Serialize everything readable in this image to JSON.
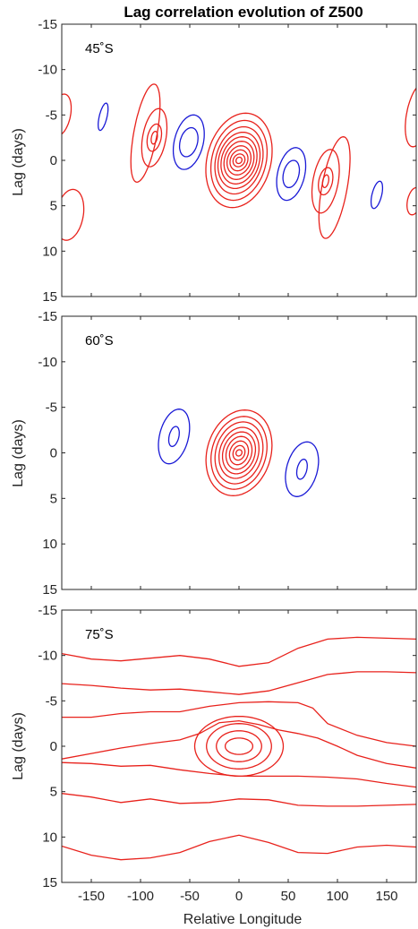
{
  "chart_data": {
    "type": "contour",
    "title": "Lag correlation evolution of Z500",
    "xlabel": "Relative Longitude",
    "ylabel": "Lag (days)",
    "xlim": [
      -180,
      180
    ],
    "ylim": [
      -15,
      15
    ],
    "y_reversed": true,
    "xticks": [
      -150,
      -100,
      -50,
      0,
      50,
      100,
      150
    ],
    "yticks": [
      -15,
      -10,
      -5,
      0,
      5,
      10,
      15
    ],
    "colors": {
      "positive": "#e8221c",
      "negative": "#1a1ad6"
    },
    "panels": [
      {
        "label": "45˚S",
        "contours": [
          {
            "sign": "pos",
            "cx": 0,
            "cy": 0,
            "rx": 3,
            "ry": 0.35,
            "tilt": -1.3
          },
          {
            "sign": "pos",
            "cx": 0,
            "cy": 0,
            "rx": 6,
            "ry": 0.7,
            "tilt": -1.3
          },
          {
            "sign": "pos",
            "cx": 0,
            "cy": 0,
            "rx": 9,
            "ry": 1.15,
            "tilt": -1.3
          },
          {
            "sign": "pos",
            "cx": 0,
            "cy": 0,
            "rx": 12,
            "ry": 1.6,
            "tilt": -1.3
          },
          {
            "sign": "pos",
            "cx": 0,
            "cy": 0,
            "rx": 15,
            "ry": 2.1,
            "tilt": -1.3
          },
          {
            "sign": "pos",
            "cx": 0,
            "cy": 0,
            "rx": 18,
            "ry": 2.6,
            "tilt": -1.3
          },
          {
            "sign": "pos",
            "cx": 0,
            "cy": 0,
            "rx": 21,
            "ry": 3.1,
            "tilt": -1.3
          },
          {
            "sign": "pos",
            "cx": 0,
            "cy": 0,
            "rx": 24,
            "ry": 3.7,
            "tilt": -1.3
          },
          {
            "sign": "pos",
            "cx": 0,
            "cy": 0,
            "rx": 28,
            "ry": 4.4,
            "tilt": -1.3
          },
          {
            "sign": "pos",
            "cx": 0,
            "cy": 0,
            "rx": 33,
            "ry": 5.2,
            "tilt": -1.3
          },
          {
            "sign": "neg",
            "cx": -51,
            "cy": -2,
            "rx": 9,
            "ry": 1.6,
            "tilt": -1.6
          },
          {
            "sign": "neg",
            "cx": -51,
            "cy": -2,
            "rx": 15,
            "ry": 3.0,
            "tilt": -1.6
          },
          {
            "sign": "neg",
            "cx": 53,
            "cy": 1.5,
            "rx": 8,
            "ry": 1.5,
            "tilt": -1.6
          },
          {
            "sign": "neg",
            "cx": 53,
            "cy": 1.5,
            "rx": 14,
            "ry": 2.9,
            "tilt": -1.6
          },
          {
            "sign": "pos",
            "cx": -86,
            "cy": -2.5,
            "rx": 3,
            "ry": 0.7,
            "tilt": -1.5
          },
          {
            "sign": "pos",
            "cx": -86,
            "cy": -2.5,
            "rx": 7,
            "ry": 1.5,
            "tilt": -1.5
          },
          {
            "sign": "pos",
            "cx": -86,
            "cy": -2.5,
            "rx": 12,
            "ry": 3.2,
            "tilt": -1.4
          },
          {
            "sign": "pos",
            "cx": -95,
            "cy": -3,
            "rx": 12,
            "ry": 5.4,
            "tilt": -1.6
          },
          {
            "sign": "pos",
            "cx": 88,
            "cy": 2.3,
            "rx": 3,
            "ry": 0.7,
            "tilt": -1.5
          },
          {
            "sign": "pos",
            "cx": 88,
            "cy": 2.3,
            "rx": 7,
            "ry": 1.5,
            "tilt": -1.5
          },
          {
            "sign": "pos",
            "cx": 88,
            "cy": 2.3,
            "rx": 13,
            "ry": 3.5,
            "tilt": -1.4
          },
          {
            "sign": "pos",
            "cx": 97,
            "cy": 3,
            "rx": 13,
            "ry": 5.6,
            "tilt": -1.6
          },
          {
            "sign": "neg",
            "cx": -138,
            "cy": -4.8,
            "rx": 4,
            "ry": 1.5,
            "tilt": -2.0
          },
          {
            "sign": "neg",
            "cx": 140,
            "cy": 3.8,
            "rx": 5,
            "ry": 1.5,
            "tilt": -2.0
          },
          {
            "sign": "pos",
            "cx": -181,
            "cy": -5,
            "rx": 10,
            "ry": 2.3,
            "tilt": -1.5
          },
          {
            "sign": "pos",
            "cx": -172,
            "cy": 6,
            "rx": 14,
            "ry": 2.8,
            "tilt": -1.2
          },
          {
            "sign": "pos",
            "cx": 182,
            "cy": -5,
            "rx": 12,
            "ry": 3.5,
            "tilt": -1.5
          },
          {
            "sign": "pos",
            "cx": 178,
            "cy": 4.5,
            "rx": 7,
            "ry": 1.5,
            "tilt": -1.5
          }
        ]
      },
      {
        "label": "60˚S",
        "contours": [
          {
            "sign": "pos",
            "cx": 0,
            "cy": 0,
            "rx": 3,
            "ry": 0.35,
            "tilt": -1.25
          },
          {
            "sign": "pos",
            "cx": 0,
            "cy": 0,
            "rx": 6,
            "ry": 0.8,
            "tilt": -1.25
          },
          {
            "sign": "pos",
            "cx": 0,
            "cy": 0,
            "rx": 9.5,
            "ry": 1.3,
            "tilt": -1.25
          },
          {
            "sign": "pos",
            "cx": 0,
            "cy": 0,
            "rx": 13,
            "ry": 1.8,
            "tilt": -1.25
          },
          {
            "sign": "pos",
            "cx": 0,
            "cy": 0,
            "rx": 16.5,
            "ry": 2.3,
            "tilt": -1.25
          },
          {
            "sign": "pos",
            "cx": 0,
            "cy": 0,
            "rx": 20,
            "ry": 2.8,
            "tilt": -1.25
          },
          {
            "sign": "pos",
            "cx": 0,
            "cy": 0,
            "rx": 24,
            "ry": 3.4,
            "tilt": -1.25
          },
          {
            "sign": "pos",
            "cx": 0,
            "cy": 0,
            "rx": 28,
            "ry": 4.0,
            "tilt": -1.25
          },
          {
            "sign": "pos",
            "cx": 0,
            "cy": 0,
            "rx": 33,
            "ry": 4.7,
            "tilt": -1.25
          },
          {
            "sign": "neg",
            "cx": -66,
            "cy": -1.8,
            "rx": 5,
            "ry": 1.1,
            "tilt": -1.7
          },
          {
            "sign": "neg",
            "cx": -66,
            "cy": -1.8,
            "rx": 15,
            "ry": 3.0,
            "tilt": -1.7
          },
          {
            "sign": "neg",
            "cx": 64,
            "cy": 1.8,
            "rx": 5,
            "ry": 1.1,
            "tilt": -1.7
          },
          {
            "sign": "neg",
            "cx": 64,
            "cy": 1.8,
            "rx": 16,
            "ry": 3.0,
            "tilt": -1.7
          }
        ]
      },
      {
        "label": "75˚S",
        "contours": [
          {
            "sign": "pos",
            "cx": 0,
            "cy": 0,
            "rx": 14,
            "ry": 0.9,
            "tilt": 0
          },
          {
            "sign": "pos",
            "cx": 0,
            "cy": 0,
            "rx": 23,
            "ry": 1.7,
            "tilt": 0
          },
          {
            "sign": "pos",
            "cx": 0,
            "cy": 0,
            "rx": 33,
            "ry": 2.5,
            "tilt": 0
          },
          {
            "sign": "pos",
            "cx": 0,
            "cy": 0,
            "rx": 45,
            "ry": 3.3,
            "tilt": 0
          }
        ],
        "lines": [
          {
            "sign": "pos",
            "lon": [
              -180,
              -150,
              -120,
              -90,
              -60,
              -30,
              0,
              30,
              60,
              90,
              120,
              150,
              180
            ],
            "lag": [
              -10.2,
              -9.6,
              -9.4,
              -9.7,
              -10.0,
              -9.6,
              -8.8,
              -9.2,
              -10.8,
              -11.8,
              -12.0,
              -11.9,
              -11.8
            ]
          },
          {
            "sign": "pos",
            "lon": [
              -180,
              -150,
              -120,
              -90,
              -60,
              -30,
              0,
              30,
              60,
              90,
              120,
              150,
              180
            ],
            "lag": [
              -6.9,
              -6.7,
              -6.4,
              -6.2,
              -6.3,
              -6.0,
              -5.7,
              -6.1,
              -7.0,
              -7.9,
              -8.2,
              -8.2,
              -8.1
            ]
          },
          {
            "sign": "pos",
            "lon": [
              -180,
              -150,
              -120,
              -90,
              -60,
              -30,
              0,
              30,
              60,
              75,
              90,
              120,
              150,
              180
            ],
            "lag": [
              -3.2,
              -3.2,
              -3.6,
              -3.8,
              -3.8,
              -4.4,
              -4.8,
              -4.9,
              -4.8,
              -4.2,
              -2.5,
              -1.2,
              -0.4,
              0
            ]
          },
          {
            "sign": "pos",
            "lon": [
              -180,
              -150,
              -120,
              -90,
              -60,
              -40,
              -20,
              0,
              20,
              40,
              60,
              80,
              100,
              120,
              150,
              180
            ],
            "lag": [
              1.4,
              0.8,
              0.2,
              -0.3,
              -0.7,
              -1.4,
              -2.6,
              -2.8,
              -2.4,
              -1.8,
              -1.4,
              -0.9,
              0,
              1.0,
              1.9,
              2.4
            ]
          },
          {
            "sign": "pos",
            "lon": [
              -180,
              -150,
              -120,
              -90,
              -60,
              -30,
              0,
              30,
              60,
              90,
              120,
              150,
              180
            ],
            "lag": [
              1.8,
              1.9,
              2.2,
              2.1,
              2.6,
              3.0,
              3.3,
              3.3,
              3.3,
              3.4,
              3.6,
              4.1,
              4.5
            ]
          },
          {
            "sign": "pos",
            "lon": [
              -180,
              -150,
              -120,
              -90,
              -60,
              -30,
              0,
              30,
              60,
              90,
              120,
              150,
              180
            ],
            "lag": [
              5.2,
              5.6,
              6.2,
              5.8,
              6.3,
              6.2,
              5.8,
              5.9,
              6.5,
              6.6,
              6.6,
              6.5,
              6.4
            ]
          },
          {
            "sign": "pos",
            "lon": [
              -180,
              -150,
              -120,
              -90,
              -60,
              -30,
              0,
              30,
              60,
              90,
              120,
              150,
              180
            ],
            "lag": [
              11.0,
              12.0,
              12.5,
              12.3,
              11.7,
              10.5,
              9.8,
              10.6,
              11.7,
              11.8,
              11.1,
              10.9,
              11.1
            ]
          }
        ]
      }
    ]
  }
}
